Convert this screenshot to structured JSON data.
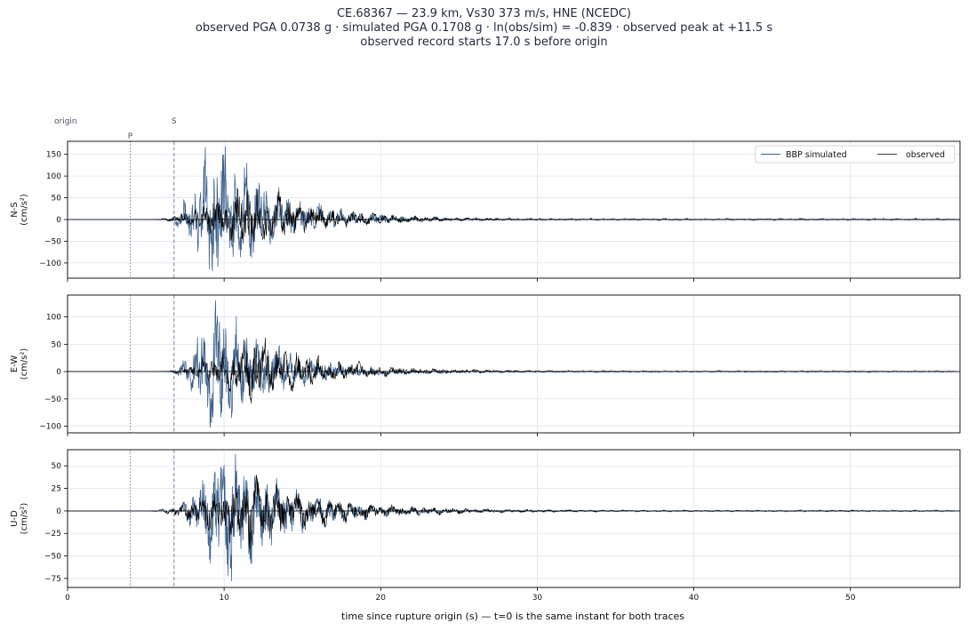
{
  "title": {
    "line1": "CE.68367  —  23.9 km, Vs30 373 m/s, HNE (NCEDC)",
    "line2": "observed PGA 0.0738 g   ·   simulated PGA 0.1708 g   ·   ln(obs/sim) = -0.839   ·   observed peak at +11.5 s",
    "line3": "observed record starts 17.0 s before origin"
  },
  "markers": {
    "origin_label": "origin",
    "p_label": "P",
    "s_label": "S",
    "p_time": 4.0,
    "s_time": 6.8
  },
  "legend": {
    "simulated": "BBP simulated",
    "observed": "observed",
    "placement": "top-right"
  },
  "colors": {
    "simulated": "#3a5f8a",
    "observed": "#000000",
    "grid": "#dde2ea",
    "marker": "#7a80a0"
  },
  "chart_data": {
    "type": "line",
    "xlabel": "time since rupture origin (s)   —   t=0 is the same instant for both traces",
    "xlim": [
      0,
      57
    ],
    "xticks": [
      0,
      10,
      20,
      30,
      40,
      50
    ],
    "grid": true,
    "panels": [
      {
        "component": "N-S",
        "ylabel_line1": "N-S",
        "ylabel_line2": "(cm/s²)",
        "ylim": [
          -135,
          180
        ],
        "yticks": [
          -100,
          -50,
          0,
          50,
          100,
          150
        ],
        "series": [
          {
            "name": "BBP simulated",
            "t_onset": 6.4,
            "t_peak": 9.5,
            "peak": 168,
            "min": -118,
            "decay": 3.2,
            "seed": 11
          },
          {
            "name": "observed",
            "t_onset": 5.6,
            "t_peak": 11.5,
            "peak": 72,
            "min": -55,
            "decay": 4.2,
            "seed": 23
          }
        ]
      },
      {
        "component": "E-W",
        "ylabel_line1": "E-W",
        "ylabel_line2": "(cm/s²)",
        "ylim": [
          -112,
          140
        ],
        "yticks": [
          -100,
          -50,
          0,
          50,
          100
        ],
        "series": [
          {
            "name": "BBP simulated",
            "t_onset": 6.6,
            "t_peak": 9.3,
            "peak": 130,
            "min": -102,
            "decay": 3.4,
            "seed": 37
          },
          {
            "name": "observed",
            "t_onset": 6.0,
            "t_peak": 11.8,
            "peak": 62,
            "min": -58,
            "decay": 4.6,
            "seed": 41
          }
        ]
      },
      {
        "component": "U-D",
        "ylabel_line1": "U-D",
        "ylabel_line2": "(cm/s²)",
        "ylim": [
          -85,
          68
        ],
        "yticks": [
          -75,
          -50,
          -25,
          0,
          25,
          50
        ],
        "series": [
          {
            "name": "BBP simulated",
            "t_onset": 6.6,
            "t_peak": 10.0,
            "peak": 63,
            "min": -78,
            "decay": 3.6,
            "seed": 53
          },
          {
            "name": "observed",
            "t_onset": 5.2,
            "t_peak": 11.5,
            "peak": 40,
            "min": -42,
            "decay": 4.8,
            "seed": 67
          }
        ]
      }
    ]
  }
}
